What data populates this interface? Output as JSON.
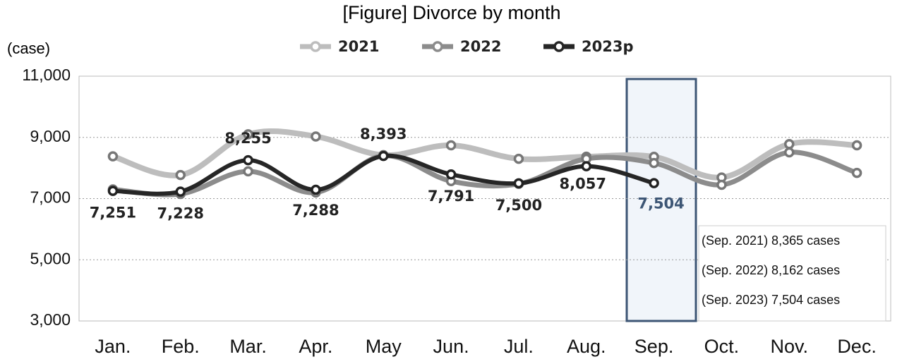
{
  "chart_data": {
    "type": "line",
    "title": "[Figure] Divorce by month",
    "y_axis_label": "(case)",
    "categories": [
      "Jan.",
      "Feb.",
      "Mar.",
      "Apr.",
      "May",
      "Jun.",
      "Jul.",
      "Aug.",
      "Sep.",
      "Oct.",
      "Nov.",
      "Dec."
    ],
    "series": [
      {
        "name": "2021",
        "color": "#bdbdbd",
        "values": [
          8380,
          7770,
          9100,
          9030,
          8420,
          8740,
          8300,
          8370,
          8365,
          7690,
          8780,
          8740
        ]
      },
      {
        "name": "2022",
        "color": "#8c8c8c",
        "values": [
          7300,
          7150,
          7890,
          7200,
          8400,
          7570,
          7480,
          8300,
          8162,
          7450,
          8510,
          7840
        ]
      },
      {
        "name": "2023p",
        "color": "#262626",
        "values": [
          7251,
          7228,
          8255,
          7288,
          8393,
          7791,
          7500,
          8057,
          7504,
          null,
          null,
          null
        ],
        "value_labels": [
          "7,251",
          "7,228",
          "8,255",
          "7,288",
          "8,393",
          "7,791",
          "7,500",
          "8,057",
          "7,504",
          null,
          null,
          null
        ]
      }
    ],
    "ylim": [
      3000,
      11000
    ],
    "yticks": [
      {
        "value": 3000,
        "label": "3,000"
      },
      {
        "value": 5000,
        "label": "5,000"
      },
      {
        "value": 7000,
        "label": "7,000"
      },
      {
        "value": 9000,
        "label": "9,000"
      },
      {
        "value": 11000,
        "label": "11,000"
      }
    ],
    "grid": true,
    "legend": "top",
    "annotations": [
      "(Sep. 2021) 8,365 cases",
      "(Sep. 2022) 8,162 cases",
      "(Sep. 2023) 7,504 cases"
    ]
  }
}
